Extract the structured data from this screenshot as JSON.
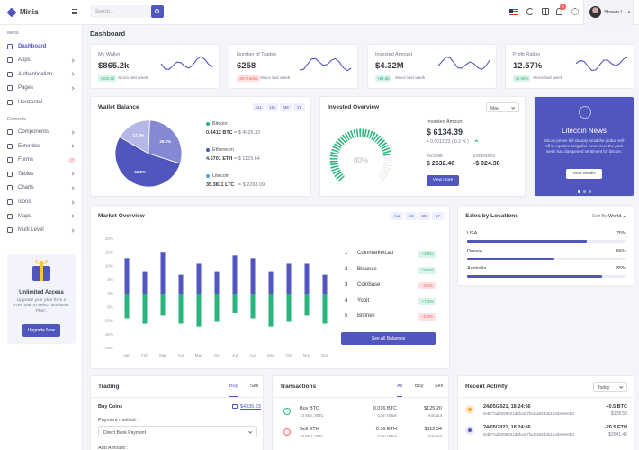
{
  "sidebar": {
    "brand": "Minia",
    "sections": [
      {
        "title": "Menu",
        "items": [
          {
            "label": "Dashboard",
            "active": true
          },
          {
            "label": "Apps",
            "arrow": true
          },
          {
            "label": "Authentication",
            "arrow": true
          },
          {
            "label": "Pages",
            "arrow": true
          },
          {
            "label": "Horizontal"
          }
        ]
      },
      {
        "title": "Elements",
        "items": [
          {
            "label": "Components",
            "arrow": true
          },
          {
            "label": "Extended",
            "arrow": true
          },
          {
            "label": "Forms",
            "badge": "7"
          },
          {
            "label": "Tables",
            "arrow": true
          },
          {
            "label": "Charts",
            "arrow": true
          },
          {
            "label": "Icons",
            "arrow": true
          },
          {
            "label": "Maps",
            "arrow": true
          },
          {
            "label": "Multi Level",
            "arrow": true
          }
        ]
      }
    ],
    "promo": {
      "title": "Unlimited Access",
      "text": "Upgrade your plan from a Free trial, to select ‘Business Plan’.",
      "button": "Upgrade Now"
    }
  },
  "topbar": {
    "search_placeholder": "Search...",
    "notification_count": "5",
    "user": "Shawn L."
  },
  "page_title": "Dashboard",
  "stats": [
    {
      "label": "My Wallet",
      "value": "$865.2k",
      "change": "+$20.9k",
      "trend": "up",
      "period": "Since last week"
    },
    {
      "label": "Number of Trades",
      "value": "6258",
      "change": "-29 Trades",
      "trend": "down",
      "period": "Since last week"
    },
    {
      "label": "Invested Amount",
      "value": "$4.32M",
      "change": "+$2.8k",
      "trend": "up",
      "period": "Since last week"
    },
    {
      "label": "Profit Ration",
      "value": "12.57%",
      "change": "+2.95%",
      "trend": "up",
      "period": "Since last week"
    }
  ],
  "wallet": {
    "title": "Wallet Balance",
    "tabs": [
      "ALL",
      "1M",
      "6M",
      "1Y"
    ],
    "chart": {
      "type": "pie",
      "values": [
        17.3,
        29.2,
        53.5
      ],
      "value_labels": [
        "17.3%",
        "29.2%",
        "53.5%"
      ],
      "colors": [
        "#b5b7e8",
        "#8589d4",
        "#5156be"
      ]
    },
    "coins": [
      {
        "name": "Bitcoin",
        "amount": "0.4412 BTC",
        "worth": "= $ 4025.32",
        "color": "#2ab57d"
      },
      {
        "name": "Ethereum",
        "amount": "4.5701 ETH",
        "worth": "= $ 1123.64",
        "color": "#5156be"
      },
      {
        "name": "Litecoin",
        "amount": "35.3811 LTC",
        "worth": "= $ 2263.09",
        "color": "#4ba6ef"
      }
    ]
  },
  "invested": {
    "title": "Invested Overview",
    "period": "May",
    "gauge": {
      "value": 80,
      "value_label": "80%",
      "color": "#2ab57d"
    },
    "amount_label": "Invested Amount",
    "amount": "$ 6134.39",
    "change": "+ 0.0012.23 ( 0.2 % )",
    "income_label": "INCOME",
    "income": "$ 2632.46",
    "expenses_label": "EXPENSES",
    "expenses": "-$ 924.38",
    "button": "View more"
  },
  "news": {
    "title": "Litecoin News",
    "text": "Bitcoin prices fell sharply amid the global sell-off in equities. Negative news over the past week has dampened sentiment for bitcoin.",
    "button": "View details"
  },
  "market": {
    "title": "Market Overview",
    "tabs": [
      "ALL",
      "1M",
      "6M",
      "1Y"
    ],
    "chart": {
      "type": "bar",
      "categories": [
        "Jan",
        "Feb",
        "Mar",
        "Apr",
        "May",
        "Jun",
        "Jul",
        "Aug",
        "Sep",
        "Oct",
        "Nov",
        "Dec"
      ],
      "series": [
        {
          "color": "#5156be",
          "values": [
            13,
            8,
            15,
            7,
            11,
            8,
            14,
            13,
            8,
            11,
            11,
            7
          ]
        },
        {
          "color": "#2ab57d",
          "values": [
            -9,
            -11,
            -8,
            -11,
            -12,
            -10,
            -7,
            -9,
            -12,
            -10,
            -8,
            -11
          ]
        }
      ],
      "ylim": [
        -20,
        20
      ],
      "yticks": [
        {
          "value": -20,
          "label": "-20%"
        },
        {
          "value": -15,
          "label": "-15%"
        },
        {
          "value": -10,
          "label": "-10%"
        },
        {
          "value": -5,
          "label": "-5%"
        },
        {
          "value": 0,
          "label": "0%"
        },
        {
          "value": 5,
          "label": "5%"
        },
        {
          "value": 10,
          "label": "10%"
        },
        {
          "value": 15,
          "label": "15%"
        },
        {
          "value": 20,
          "label": "20%"
        }
      ],
      "grid": false
    },
    "exchanges": [
      {
        "rank": "1",
        "name": "Coinmarketcap",
        "change": "+2.5%",
        "trend": "up"
      },
      {
        "rank": "2",
        "name": "Binance",
        "change": "+8.3%",
        "trend": "up"
      },
      {
        "rank": "3",
        "name": "Coinbase",
        "change": "-3.6%",
        "trend": "down"
      },
      {
        "rank": "4",
        "name": "Yobit",
        "change": "+7.1%",
        "trend": "up"
      },
      {
        "rank": "5",
        "name": "Bitfinex",
        "change": "-0.9%",
        "trend": "down"
      }
    ],
    "button": "See All Balances"
  },
  "sales": {
    "title": "Sales by Locations",
    "sort_label": "Sort By:",
    "sort_value": "World",
    "chart": {
      "type": "bar",
      "categories": [
        "USA",
        "Russia",
        "Australia"
      ],
      "values": [
        75,
        55,
        85
      ],
      "value_labels": [
        "75%",
        "55%",
        "85%"
      ],
      "xlim": [
        0,
        100
      ],
      "color": "#5156be"
    }
  },
  "trading": {
    "title": "Trading",
    "tabs": [
      "Buy",
      "Sell"
    ],
    "coin_label": "Buy Coins",
    "balance": "$4335.23",
    "payment_label": "Payment method :",
    "payment": "Direct Bank Payment",
    "amount_label": "Add Amount :"
  },
  "transactions": {
    "title": "Transactions",
    "tabs": [
      "All",
      "Buy",
      "Sell"
    ],
    "rows": [
      {
        "type": "buy",
        "title": "Buy BTC",
        "date": "14 Mar, 2021",
        "coin": "0.016 BTC",
        "coin_label": "Coin Value",
        "amount": "$125.20",
        "amount_label": "Amount"
      },
      {
        "type": "sell",
        "title": "Sell ETH",
        "date": "15 Mar, 2021",
        "coin": "0.56 ETH",
        "coin_label": "Coin Value",
        "amount": "$112.34",
        "amount_label": "Amount"
      }
    ]
  },
  "activity": {
    "title": "Recent Activity",
    "period": "Today",
    "rows": [
      {
        "coin": "btc",
        "time": "24/05/2021, 18:24:56",
        "hash": "0xb77ad0099e21d4fca87fa4ca92dda1a40af9e05d",
        "change": "+0.5 BTC",
        "value": "$178.53"
      },
      {
        "coin": "eth",
        "time": "24/05/2021, 18:24:56",
        "hash": "0xb77ad0099e21d4fca87fa4ca92dda1a40af9e05d",
        "change": "-20.5 ETH",
        "value": "$3541.45"
      }
    ]
  }
}
